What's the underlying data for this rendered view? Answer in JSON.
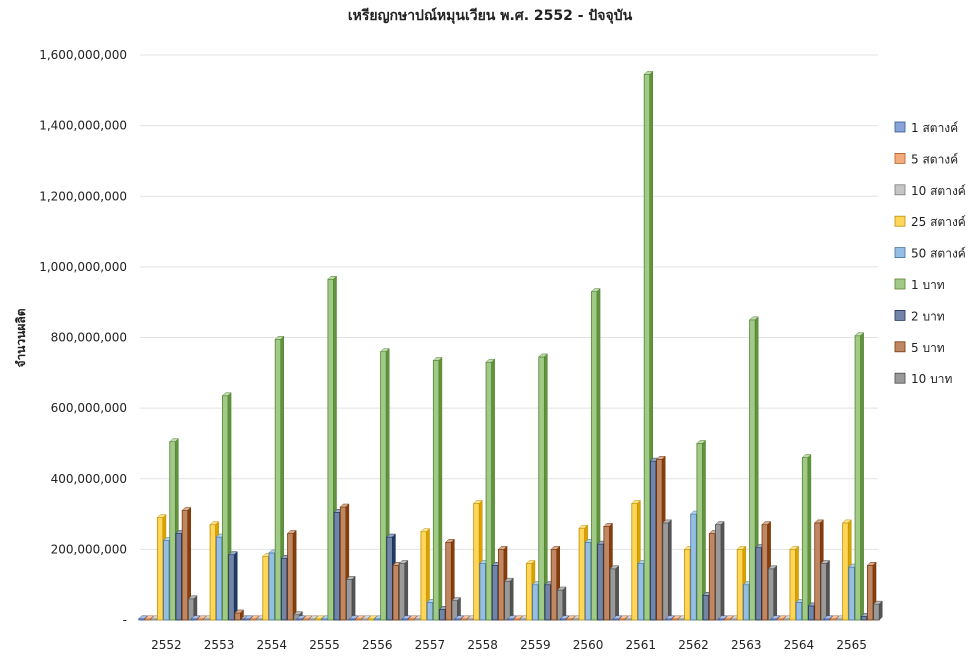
{
  "chart_data": {
    "type": "bar",
    "title": "เหรียญกษาปณ์หมุนเวียน พ.ศ. 2552 - ปัจจุบัน",
    "ylabel": "จำนวนผลิต",
    "xlabel": "",
    "ylim": [
      0,
      1600000000
    ],
    "yticks": [
      {
        "value": 0,
        "label": "-"
      },
      {
        "value": 200000000,
        "label": "200,000,000"
      },
      {
        "value": 400000000,
        "label": "400,000,000"
      },
      {
        "value": 600000000,
        "label": "600,000,000"
      },
      {
        "value": 800000000,
        "label": "800,000,000"
      },
      {
        "value": 1000000000,
        "label": "1,000,000,000"
      },
      {
        "value": 1200000000,
        "label": "1,200,000,000"
      },
      {
        "value": 1400000000,
        "label": "1,400,000,000"
      },
      {
        "value": 1600000000,
        "label": "1,600,000,000"
      }
    ],
    "grid": true,
    "legend_position": "right",
    "categories": [
      "2552",
      "2553",
      "2554",
      "2555",
      "2556",
      "2557",
      "2558",
      "2559",
      "2560",
      "2561",
      "2562",
      "2563",
      "2564",
      "2565"
    ],
    "series": [
      {
        "name": "1 สตางค์",
        "color": "#4a72c4",
        "values": [
          0,
          0,
          0,
          0,
          0,
          0,
          0,
          0,
          0,
          0,
          0,
          0,
          0,
          0
        ]
      },
      {
        "name": "5 สตางค์",
        "color": "#ed7d31",
        "values": [
          0,
          0,
          0,
          0,
          0,
          0,
          0,
          0,
          0,
          0,
          0,
          0,
          0,
          0
        ]
      },
      {
        "name": "10 สตางค์",
        "color": "#a5a5a5",
        "values": [
          0,
          0,
          0,
          0,
          0,
          0,
          0,
          0,
          0,
          0,
          0,
          0,
          0,
          0
        ]
      },
      {
        "name": "25 สตางค์",
        "color": "#ffc000",
        "values": [
          290000000,
          270000000,
          180000000,
          0,
          0,
          250000000,
          330000000,
          160000000,
          260000000,
          330000000,
          200000000,
          200000000,
          200000000,
          275000000
        ]
      },
      {
        "name": "50 สตางค์",
        "color": "#5b9bd5",
        "values": [
          225000000,
          235000000,
          190000000,
          0,
          0,
          50000000,
          160000000,
          100000000,
          220000000,
          160000000,
          300000000,
          100000000,
          50000000,
          150000000
        ]
      },
      {
        "name": "1 บาท",
        "color": "#70ad47",
        "values": [
          505000000,
          635000000,
          795000000,
          965000000,
          760000000,
          735000000,
          730000000,
          745000000,
          930000000,
          1545000000,
          500000000,
          850000000,
          460000000,
          805000000
        ]
      },
      {
        "name": "2 บาท",
        "color": "#264478",
        "values": [
          245000000,
          185000000,
          175000000,
          305000000,
          235000000,
          30000000,
          155000000,
          100000000,
          215000000,
          450000000,
          70000000,
          205000000,
          40000000,
          10000000
        ]
      },
      {
        "name": "5 บาท",
        "color": "#9e480e",
        "values": [
          310000000,
          20000000,
          245000000,
          320000000,
          155000000,
          220000000,
          200000000,
          200000000,
          265000000,
          455000000,
          245000000,
          270000000,
          275000000,
          155000000
        ]
      },
      {
        "name": "10 บาท",
        "color": "#636363",
        "values": [
          60000000,
          0,
          15000000,
          115000000,
          160000000,
          55000000,
          110000000,
          85000000,
          145000000,
          275000000,
          270000000,
          145000000,
          160000000,
          45000000
        ]
      }
    ]
  }
}
